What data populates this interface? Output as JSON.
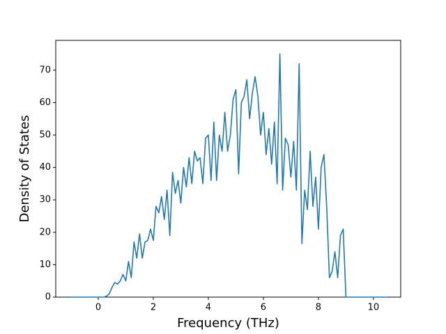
{
  "chart_data": {
    "type": "line",
    "xlabel": "Frequency (THz)",
    "ylabel": "Density of States",
    "x": [
      -1.0,
      -0.9,
      -0.8,
      -0.7,
      -0.6,
      -0.5,
      -0.4,
      -0.3,
      -0.2,
      -0.1,
      0.0,
      0.1,
      0.2,
      0.3,
      0.4,
      0.5,
      0.6,
      0.7,
      0.8,
      0.9,
      1.0,
      1.1,
      1.2,
      1.3,
      1.4,
      1.5,
      1.6,
      1.7,
      1.8,
      1.9,
      2.0,
      2.1,
      2.2,
      2.3,
      2.4,
      2.5,
      2.6,
      2.7,
      2.8,
      2.9,
      3.0,
      3.1,
      3.2,
      3.3,
      3.4,
      3.5,
      3.6,
      3.7,
      3.8,
      3.9,
      4.0,
      4.1,
      4.2,
      4.3,
      4.4,
      4.5,
      4.6,
      4.7,
      4.8,
      4.9,
      5.0,
      5.1,
      5.2,
      5.3,
      5.4,
      5.5,
      5.6,
      5.7,
      5.8,
      5.9,
      6.0,
      6.1,
      6.2,
      6.3,
      6.4,
      6.5,
      6.6,
      6.7,
      6.8,
      6.9,
      7.0,
      7.1,
      7.2,
      7.3,
      7.4,
      7.5,
      7.6,
      7.7,
      7.8,
      7.9,
      8.0,
      8.1,
      8.2,
      8.3,
      8.4,
      8.5,
      8.6,
      8.7,
      8.8,
      8.9,
      9.0,
      9.1,
      9.2,
      9.3,
      9.4,
      9.5,
      9.6,
      9.7,
      9.8,
      9.9,
      10.0,
      10.1,
      10.2,
      10.3,
      10.4,
      10.5
    ],
    "series": [
      {
        "color": "#1f77b4",
        "values": [
          0,
          0,
          0,
          0,
          0,
          0,
          0,
          0,
          0,
          0,
          0,
          0,
          0,
          0.3,
          1,
          3,
          4.5,
          4,
          5,
          7,
          5,
          11,
          6,
          17,
          12,
          19.5,
          12,
          17,
          17.5,
          21,
          17.5,
          28,
          26,
          31,
          24,
          33,
          19,
          38.5,
          32,
          36,
          29,
          40,
          34,
          43,
          35,
          45,
          42,
          43,
          35,
          49,
          50,
          36,
          54,
          36,
          50,
          45,
          57,
          45,
          50,
          61,
          64,
          38,
          60,
          62,
          67,
          55,
          63,
          68,
          62,
          50,
          57,
          44,
          52,
          41,
          54,
          35,
          75,
          33,
          49,
          47,
          37,
          48,
          33,
          72,
          16.5,
          33,
          27,
          45,
          28,
          37,
          21,
          40,
          44,
          28,
          6,
          8,
          14,
          6,
          19,
          21,
          0,
          0,
          0,
          0,
          0,
          0,
          0,
          0,
          0,
          0,
          0,
          0,
          0,
          0,
          0,
          0
        ]
      }
    ],
    "xlim": [
      -1.544,
      10.99
    ],
    "ylim": [
      0,
      79.2
    ],
    "xticks": [
      0,
      2,
      4,
      6,
      8,
      10
    ],
    "yticks": [
      0,
      10,
      20,
      30,
      40,
      50,
      60,
      70
    ],
    "grid": false
  }
}
